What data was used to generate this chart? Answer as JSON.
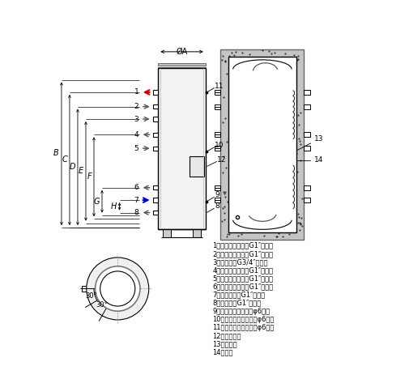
{
  "bg_color": "#ffffff",
  "line_color": "#000000",
  "gray_color": "#888888",
  "insulation_color": "#c8c8c8",
  "legend_items": [
    "1、生活热水出口（G1″外丝）",
    "2、二次循环进口（G1″外丝）",
    "3、回流口（G3/4″外丝）",
    "4、二次循环出口（G1″外丝）",
    "5、一次循环进口（G1″外丝）",
    "6、一次循环出口（G1″外丝）",
    "7、冷水进口（G1″外丝）",
    "8、排污口（G1″外丝）",
    "9、下部感温探头孔（φ6孔）",
    "10、中部感温探头孔（φ6孔）",
    "11、上部感温探头孔（φ6孔）",
    "12、电器盒罩",
    "13、电热管",
    "14、镁棒"
  ],
  "dim_labels": [
    "B",
    "C",
    "D",
    "E",
    "F",
    "G",
    "H"
  ],
  "port_labels": [
    "1",
    "2",
    "3",
    "4",
    "5",
    "6",
    "7",
    "8"
  ],
  "sensor_labels": [
    "11",
    "10",
    "9"
  ],
  "annot_labels": [
    "11",
    "10",
    "12",
    "9",
    "8"
  ]
}
